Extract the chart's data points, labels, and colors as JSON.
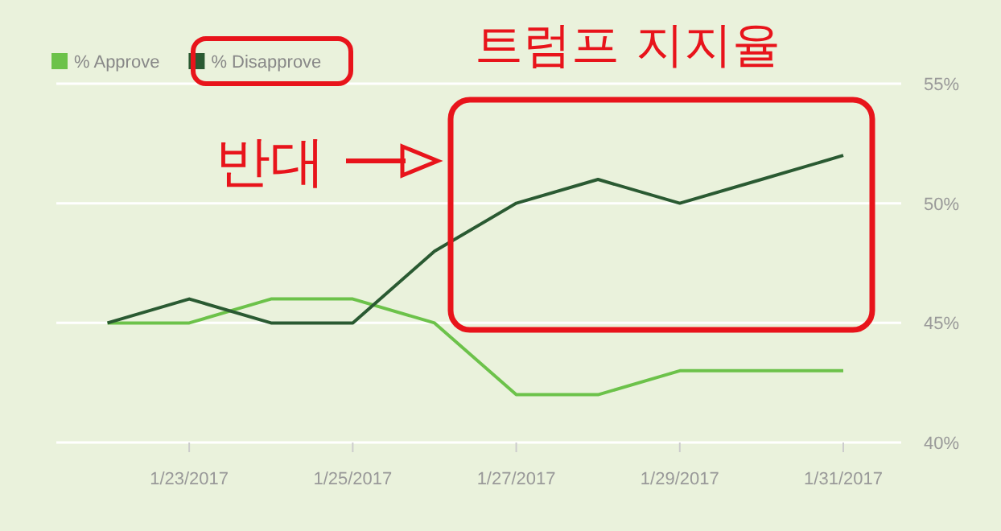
{
  "chart_data": {
    "type": "line",
    "title": "트럼프 지지율",
    "annotations": [
      "반대"
    ],
    "x": [
      "2017-01-22",
      "2017-01-23",
      "2017-01-24",
      "2017-01-25",
      "2017-01-26",
      "2017-01-27",
      "2017-01-28",
      "2017-01-29",
      "2017-01-30",
      "2017-01-31"
    ],
    "series": [
      {
        "name": "% Approve",
        "color": "#6cc24a",
        "values": [
          45,
          45,
          46,
          46,
          45,
          42,
          42,
          43,
          43,
          43
        ]
      },
      {
        "name": "% Disapprove",
        "color": "#2a5a32",
        "values": [
          45,
          46,
          45,
          45,
          48,
          50,
          51,
          50,
          51,
          52
        ]
      }
    ],
    "xlim": [
      "2017-01-21T09:00",
      "2017-01-31T17:00"
    ],
    "xticks": [
      {
        "value": "2017-01-23",
        "label": "1/23/2017"
      },
      {
        "value": "2017-01-25",
        "label": "1/25/2017"
      },
      {
        "value": "2017-01-27",
        "label": "1/27/2017"
      },
      {
        "value": "2017-01-29",
        "label": "1/29/2017"
      },
      {
        "value": "2017-01-31",
        "label": "1/31/2017"
      }
    ],
    "ylim": [
      40,
      55
    ],
    "yticks": [
      {
        "value": 40,
        "label": "40%"
      },
      {
        "value": 45,
        "label": "45%"
      },
      {
        "value": 50,
        "label": "50%"
      },
      {
        "value": 55,
        "label": "55%"
      }
    ],
    "grid": "y",
    "legend": "top left",
    "marker": "none",
    "line_style": "solid"
  }
}
